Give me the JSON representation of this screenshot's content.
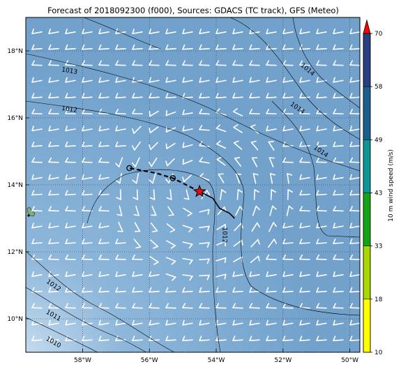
{
  "title": "Forecast of 2018092300 (f000), Sources: GDACS (TC track), GFS (Meteo)",
  "map": {
    "lon_range": [
      -59.7,
      -49.7
    ],
    "lat_range": [
      9.0,
      19.0
    ],
    "gridlines": "dotted",
    "background_colors": {
      "ocean": "#76a6cf",
      "ocean_light": "#b8d4ea",
      "land": "#7fb07a"
    },
    "x_ticks": [
      {
        "value": -58,
        "label": "58°W"
      },
      {
        "value": -56,
        "label": "56°W"
      },
      {
        "value": -54,
        "label": "54°W"
      },
      {
        "value": -52,
        "label": "52°W"
      },
      {
        "value": -50,
        "label": "50°W"
      }
    ],
    "y_ticks": [
      {
        "value": 10,
        "label": "10°N"
      },
      {
        "value": 12,
        "label": "12°N"
      },
      {
        "value": 14,
        "label": "14°N"
      },
      {
        "value": 16,
        "label": "16°N"
      },
      {
        "value": 18,
        "label": "18°N"
      }
    ],
    "isobar_labels": [
      {
        "text": "1013",
        "lon": -58.4,
        "lat": 17.35,
        "angle": 10
      },
      {
        "text": "1012",
        "lon": -58.4,
        "lat": 16.2,
        "angle": 8
      },
      {
        "text": "1014",
        "lon": -51.3,
        "lat": 17.4,
        "angle": 40
      },
      {
        "text": "1014",
        "lon": -51.6,
        "lat": 16.25,
        "angle": 35
      },
      {
        "text": "1014",
        "lon": -50.9,
        "lat": 14.95,
        "angle": 35
      },
      {
        "text": "1012",
        "lon": -53.8,
        "lat": 12.5,
        "angle": 90
      },
      {
        "text": "1012",
        "lon": -58.9,
        "lat": 10.95,
        "angle": 35
      },
      {
        "text": "1011",
        "lon": -58.9,
        "lat": 10.05,
        "angle": 30
      },
      {
        "text": "1010",
        "lon": -58.9,
        "lat": 9.25,
        "angle": 30
      }
    ],
    "track_past": [
      [
        -53.45,
        13.0
      ],
      [
        -53.6,
        13.15
      ],
      [
        -53.9,
        13.3
      ],
      [
        -54.1,
        13.6
      ],
      [
        -54.5,
        13.8
      ]
    ],
    "track_forecast": [
      [
        -54.5,
        13.8
      ],
      [
        -55.3,
        14.2
      ],
      [
        -55.8,
        14.35
      ],
      [
        -56.6,
        14.5
      ]
    ],
    "forecast_points": [
      [
        -55.3,
        14.2
      ],
      [
        -56.6,
        14.5
      ]
    ],
    "current_position": [
      -54.5,
      13.8
    ],
    "wind_field": {
      "cols": 20,
      "rows": 21
    }
  },
  "colorbar": {
    "label": "10 m wind speed (m/s)",
    "levels": [
      "10",
      "18",
      "33",
      "43",
      "49",
      "58",
      "70"
    ],
    "colors": [
      "#ffff00",
      "#a8d800",
      "#17a317",
      "#0e9696",
      "#1b5f8f",
      "#273f80",
      "#1f2b66"
    ],
    "extend_color": "#ff0000"
  }
}
